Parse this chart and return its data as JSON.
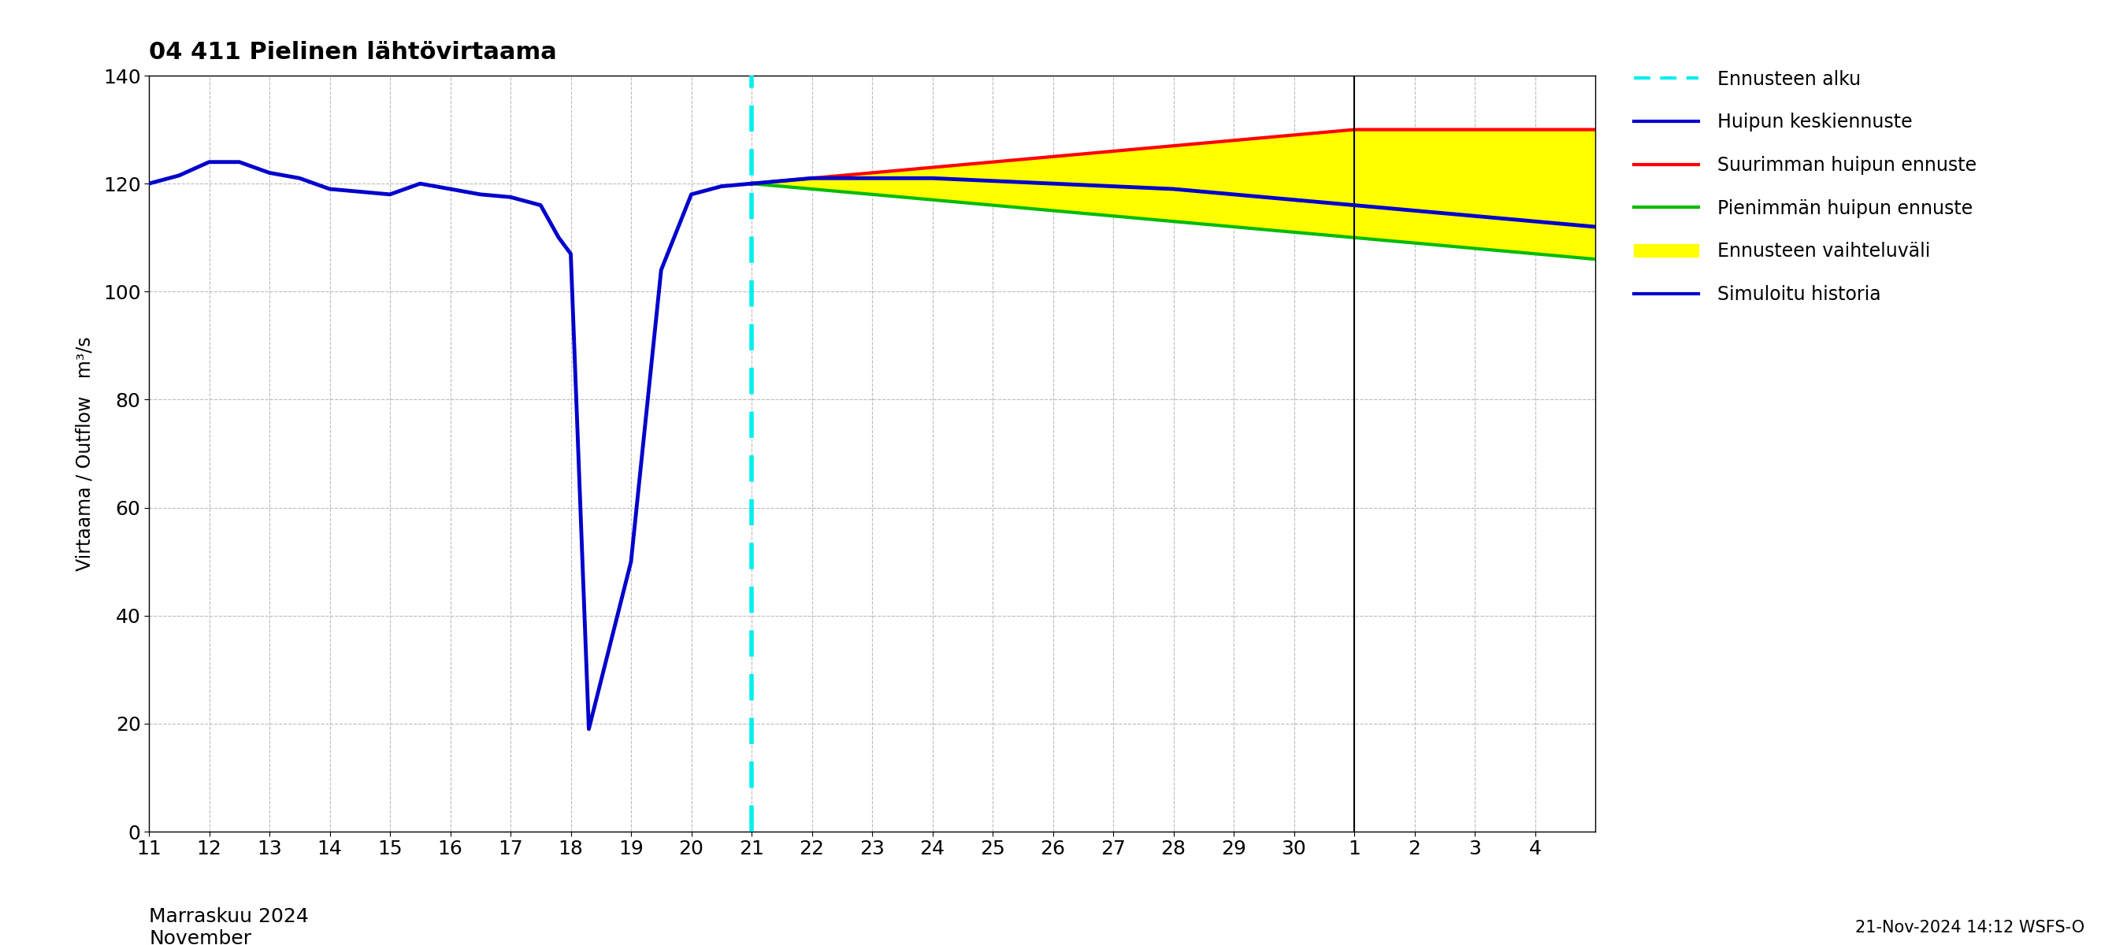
{
  "title": "04 411 Pielinen lähtövirtaama",
  "ylabel": "Virtaama / Outflow   m³/s",
  "xlabel_line1": "Marraskuu 2024",
  "xlabel_line2": "November",
  "timestamp_label": "21-Nov-2024 14:12 WSFS-O",
  "ylim": [
    0,
    140
  ],
  "yticks": [
    0,
    20,
    40,
    60,
    80,
    100,
    120,
    140
  ],
  "forecast_start_x": 21,
  "nov_dec_boundary": 31,
  "xlim": [
    11,
    35
  ],
  "history_x": [
    11,
    11.5,
    12,
    12.5,
    13,
    13.5,
    14,
    14.5,
    15,
    15.5,
    16,
    16.5,
    17,
    17.5,
    17.8,
    18,
    18.3,
    19,
    19.5,
    20,
    20.5,
    21
  ],
  "history_y": [
    120,
    121.5,
    124,
    124,
    122,
    121,
    119,
    118.5,
    118,
    120,
    119,
    118,
    117.5,
    116,
    110,
    107,
    19,
    50,
    104,
    118,
    119.5,
    120
  ],
  "forecast_x": [
    21,
    22,
    23,
    24,
    25,
    26,
    27,
    28,
    29,
    30,
    31,
    32,
    33,
    34,
    35
  ],
  "mean_y": [
    120,
    121,
    121,
    121,
    120.5,
    120,
    119.5,
    119,
    118,
    117,
    116,
    115,
    114,
    113,
    112
  ],
  "max_y": [
    120,
    121,
    122,
    123,
    124,
    125,
    126,
    127,
    128,
    129,
    130,
    130,
    130,
    130,
    130
  ],
  "min_y": [
    120,
    119,
    118,
    117,
    116,
    115,
    114,
    113,
    112,
    111,
    110,
    109,
    108,
    107,
    106
  ],
  "history_color": "#0000cc",
  "mean_color": "#0000cc",
  "max_color": "#ff0000",
  "min_color": "#00bb00",
  "fill_color": "#ffff00",
  "forecast_vline_color": "#00eeee",
  "grid_color": "#bbbbbb",
  "background_color": "#ffffff",
  "title_fontsize": 22,
  "tick_fontsize": 18,
  "ylabel_fontsize": 17,
  "legend_fontsize": 17,
  "timestamp_fontsize": 15
}
